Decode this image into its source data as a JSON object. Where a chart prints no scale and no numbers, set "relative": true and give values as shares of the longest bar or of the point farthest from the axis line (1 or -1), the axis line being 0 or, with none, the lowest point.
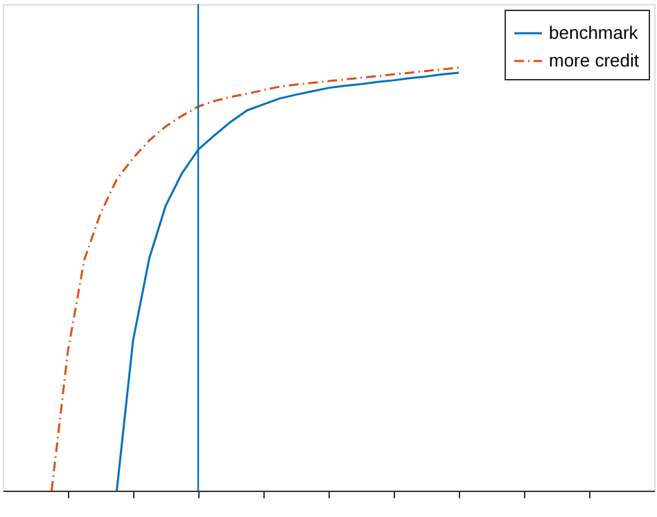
{
  "chart_data": {
    "type": "line",
    "relative": true,
    "categories": [
      null,
      null,
      null,
      null,
      null,
      null,
      null,
      null,
      null,
      null,
      null,
      null,
      null,
      null,
      null,
      null,
      null,
      null,
      null,
      null,
      null,
      null,
      null,
      null,
      null,
      null,
      null,
      null,
      null,
      null,
      null,
      null,
      null,
      null,
      null,
      null,
      null,
      null,
      null,
      null,
      null
    ],
    "series": [
      {
        "name": "benchmark",
        "color": "#0072bd",
        "line_style": "solid",
        "values": [
          null,
          null,
          null,
          null,
          null,
          null,
          null,
          0,
          0.355,
          0.55,
          0.673,
          0.75,
          0.806,
          0.84,
          0.872,
          0.899,
          0.913,
          0.927,
          0.936,
          0.944,
          0.952,
          0.957,
          0.961,
          0.966,
          0.97,
          0.975,
          0.979,
          0.984,
          0.988,
          null,
          null,
          null,
          null,
          null,
          null,
          null,
          null,
          null,
          null,
          null,
          null
        ]
      },
      {
        "name": "more credit",
        "color": "#d95319",
        "line_style": "dashdot",
        "values": [
          null,
          null,
          null,
          0,
          0.33,
          0.545,
          0.655,
          0.736,
          0.786,
          0.828,
          0.861,
          0.886,
          0.908,
          0.921,
          0.931,
          0.938,
          0.947,
          0.955,
          0.96,
          0.964,
          0.968,
          0.972,
          0.976,
          0.98,
          0.984,
          0.988,
          0.992,
          0.996,
          1.0,
          null,
          null,
          null,
          null,
          null,
          null,
          null,
          null,
          null,
          null,
          null,
          null
        ]
      }
    ],
    "legend": "top right",
    "grid": false,
    "marker": "none"
  }
}
